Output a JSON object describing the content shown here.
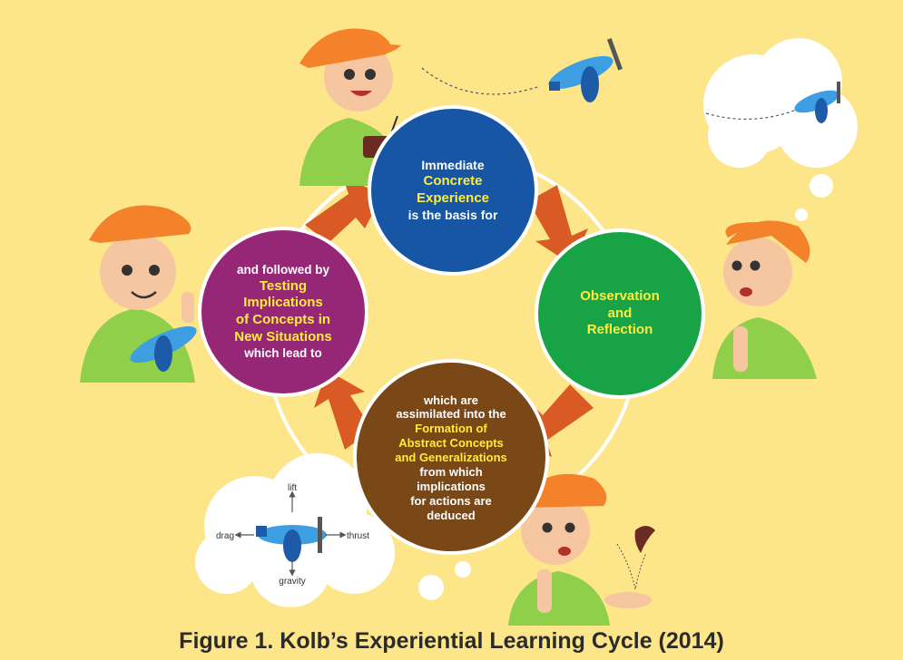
{
  "caption": "Figure 1. Kolb’s Experiential Learning Cycle (2014)",
  "colors": {
    "background": "#fde58a",
    "concrete_experience": "#1656a5",
    "reflective_observation": "#19a347",
    "abstract_conceptualization": "#7a4716",
    "active_experimentation": "#962777",
    "arrow": "#d95a24",
    "highlight": "#ffec3d"
  },
  "cycle": {
    "concrete_experience": {
      "lines": [
        "Immediate",
        "Concrete",
        "Experience",
        "is the basis for"
      ],
      "highlighted": [
        false,
        true,
        true,
        false
      ]
    },
    "reflective_observation": {
      "lines": [
        "Observation",
        "and",
        "Reflection"
      ],
      "highlighted": [
        true,
        true,
        true
      ]
    },
    "abstract_conceptualization": {
      "lines": [
        "which are",
        "assimilated into the",
        "Formation of",
        "Abstract Concepts",
        "and Generalizations",
        "from which",
        "implications",
        "for actions are",
        "deduced"
      ],
      "highlighted": [
        false,
        false,
        true,
        true,
        true,
        false,
        false,
        false,
        false
      ]
    },
    "active_experimentation": {
      "lines": [
        "and followed by",
        "Testing",
        "Implications",
        "of Concepts in",
        "New Situations",
        "which lead to"
      ],
      "highlighted": [
        false,
        true,
        true,
        true,
        true,
        false
      ]
    }
  },
  "forces_diagram": {
    "lift": "lift",
    "drag": "drag",
    "thrust": "thrust",
    "gravity": "gravity"
  },
  "icons": [
    "boy-with-remote-icon",
    "flying-plane-icon",
    "thought-cloud-plane-icon",
    "thinking-boy-icon",
    "boy-holding-plane-icon",
    "forces-cloud-icon",
    "boy-with-leaf-icon",
    "falling-leaf-icon"
  ]
}
